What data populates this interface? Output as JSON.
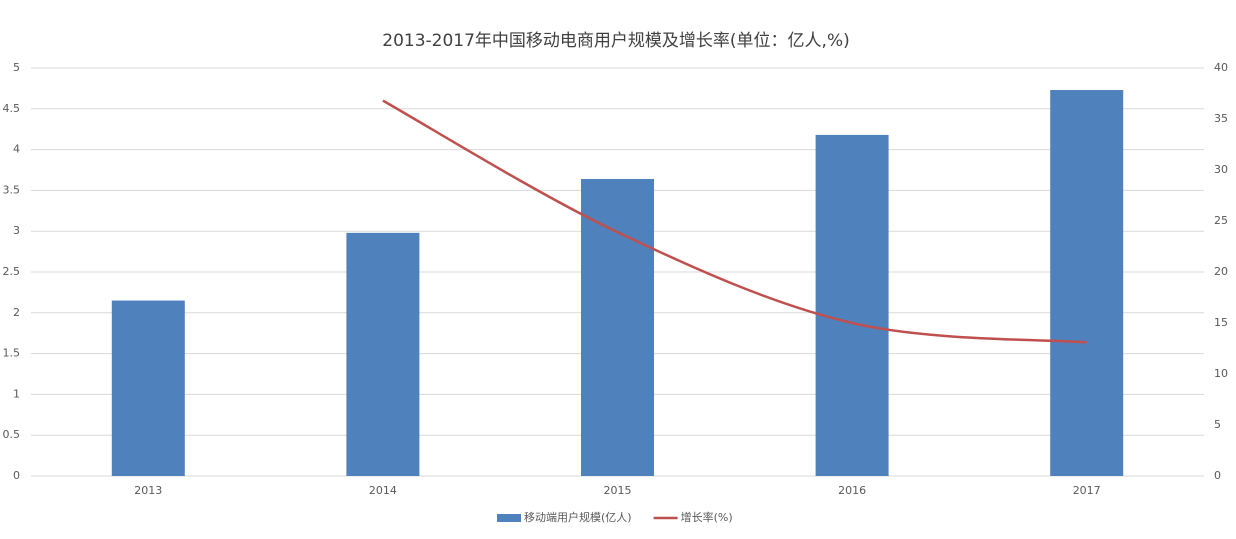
{
  "chart_data": {
    "type": "bar",
    "title": "2013-2017年中国移动电商用户规模及增长率(单位：亿人,%)",
    "categories": [
      "2013",
      "2014",
      "2015",
      "2016",
      "2017"
    ],
    "series": [
      {
        "name": "移动端用户规模(亿人)",
        "type": "bar",
        "color": "#4f81bd",
        "values": [
          2.15,
          2.98,
          3.64,
          4.18,
          4.73
        ]
      },
      {
        "name": "增长率(%)",
        "type": "line",
        "axis": "y2",
        "color": "#c0504d",
        "values": [
          null,
          36.8,
          23.9,
          15.0,
          13.1
        ]
      }
    ],
    "ylim": [
      0,
      5
    ],
    "yticks": [
      0,
      0.5,
      1,
      1.5,
      2,
      2.5,
      3,
      3.5,
      4,
      4.5,
      5
    ],
    "y2lim": [
      0,
      40
    ],
    "y2ticks": [
      0,
      5,
      10,
      15,
      20,
      25,
      30,
      35,
      40
    ],
    "grid": true,
    "legend": "bottom"
  }
}
